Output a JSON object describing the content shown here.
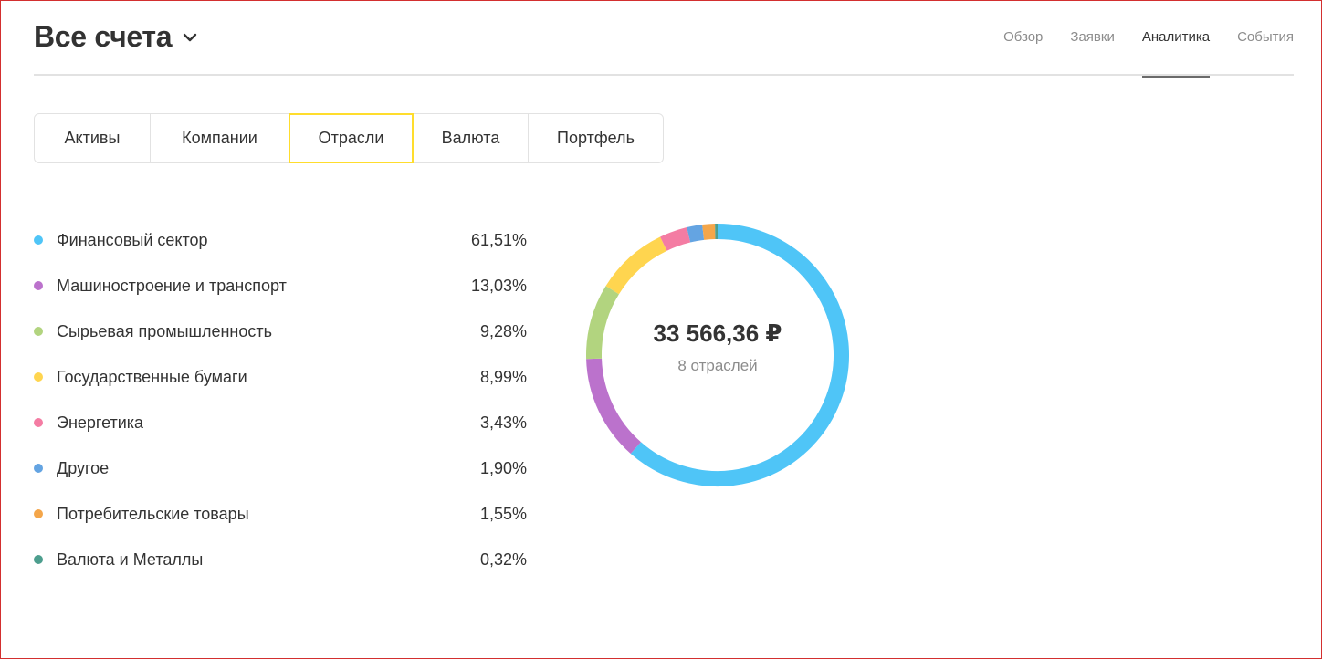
{
  "header": {
    "title": "Все счета",
    "nav": [
      {
        "label": "Обзор",
        "active": false
      },
      {
        "label": "Заявки",
        "active": false
      },
      {
        "label": "Аналитика",
        "active": true
      },
      {
        "label": "События",
        "active": false
      }
    ]
  },
  "segments": [
    {
      "label": "Активы",
      "active": false
    },
    {
      "label": "Компании",
      "active": false
    },
    {
      "label": "Отрасли",
      "active": true
    },
    {
      "label": "Валюта",
      "active": false
    },
    {
      "label": "Портфель",
      "active": false
    }
  ],
  "summary": {
    "total": "33 566,36 ₽",
    "count_label": "8 отраслей"
  },
  "colors": {
    "accent_yellow": "#ffdd2d"
  },
  "chart_data": {
    "type": "pie",
    "donut": true,
    "categories": [
      "Финансовый сектор",
      "Машиностроение и транспорт",
      "Сырьевая промышленность",
      "Государственные бумаги",
      "Энергетика",
      "Другое",
      "Потребительские товары",
      "Валюта и Металлы"
    ],
    "values": [
      61.51,
      13.03,
      9.28,
      8.99,
      3.43,
      1.9,
      1.55,
      0.32
    ],
    "labels": [
      "61,51%",
      "13,03%",
      "9,28%",
      "8,99%",
      "3,43%",
      "1,90%",
      "1,55%",
      "0,32%"
    ],
    "colors": [
      "#4fc5f7",
      "#bb72cc",
      "#b2d47f",
      "#ffd54f",
      "#f47ca3",
      "#64a4e2",
      "#f4a64a",
      "#4d9e8e"
    ],
    "legend": "left"
  }
}
